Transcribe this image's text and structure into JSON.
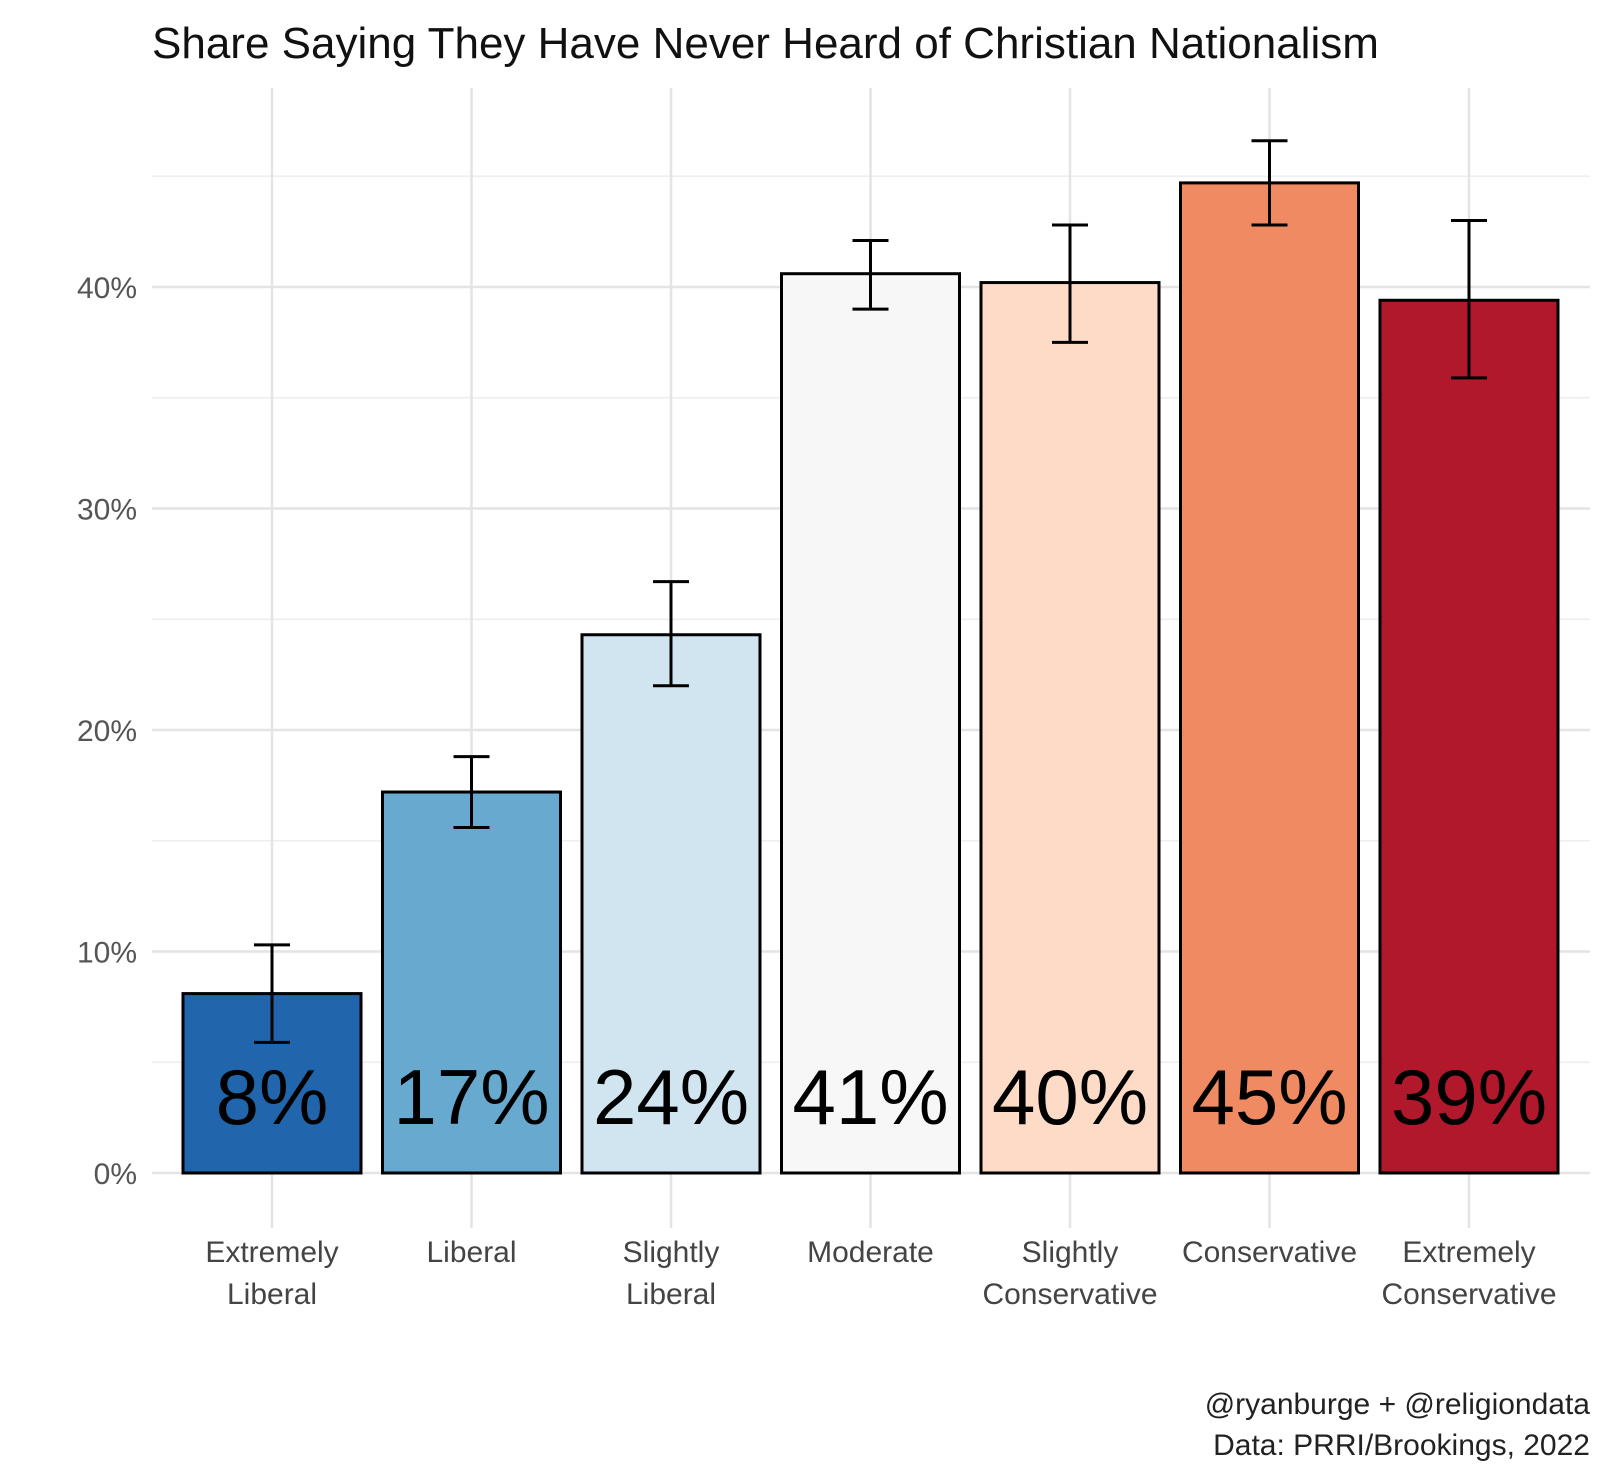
{
  "chart_data": {
    "type": "bar",
    "title": "Share Saying They Have Never Heard of Christian Nationalism",
    "xlabel": "",
    "ylabel": "",
    "ylim": [
      0,
      47
    ],
    "y_ticks": [
      0,
      10,
      20,
      30,
      40
    ],
    "y_tick_labels": [
      "0%",
      "10%",
      "20%",
      "30%",
      "40%"
    ],
    "categories": [
      [
        "Extremely",
        "Liberal"
      ],
      [
        "Liberal"
      ],
      [
        "Slightly",
        "Liberal"
      ],
      [
        "Moderate"
      ],
      [
        "Slightly",
        "Conservative"
      ],
      [
        "Conservative"
      ],
      [
        "Extremely",
        "Conservative"
      ]
    ],
    "values": [
      8.1,
      17.2,
      24.3,
      40.6,
      40.2,
      44.7,
      39.4
    ],
    "error_low": [
      5.9,
      15.6,
      22.0,
      39.0,
      37.5,
      42.8,
      35.9
    ],
    "error_high": [
      10.3,
      18.8,
      26.7,
      42.1,
      42.8,
      46.6,
      43.0
    ],
    "data_labels": [
      "8%",
      "17%",
      "24%",
      "41%",
      "40%",
      "45%",
      "39%"
    ],
    "colors": [
      "#2166ac",
      "#67a9cf",
      "#d1e5f0",
      "#f7f7f7",
      "#fddbc7",
      "#ef8a62",
      "#b2182b"
    ],
    "grid": true,
    "legend": "none"
  },
  "caption": {
    "line1": "@ryanburge + @religiondata",
    "line2": "Data: PRRI/Brookings, 2022"
  }
}
